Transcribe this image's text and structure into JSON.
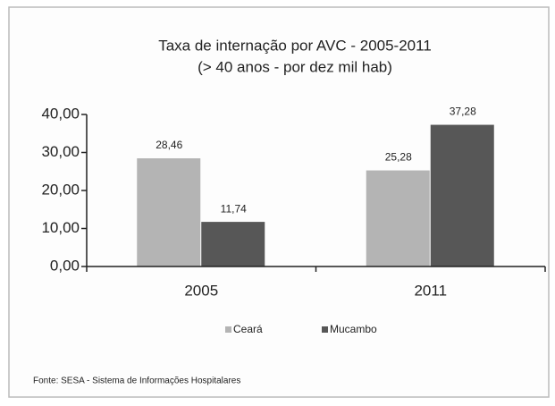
{
  "chart_data": {
    "type": "bar",
    "title": "Taxa de internação por AVC - 2005-2011",
    "subtitle": "(> 40 anos - por dez mil hab)",
    "categories": [
      "2005",
      "2011"
    ],
    "series": [
      {
        "name": "Ceará",
        "color": "#b4b4b4",
        "values": [
          28.46,
          25.28
        ],
        "value_labels": [
          "28,46",
          "25,28"
        ]
      },
      {
        "name": "Mucambo",
        "color": "#575757",
        "values": [
          11.74,
          37.28
        ],
        "value_labels": [
          "11,74",
          "37,28"
        ]
      }
    ],
    "ylim": [
      0,
      40
    ],
    "yticks": [
      {
        "value": 0,
        "label": "0,00"
      },
      {
        "value": 10,
        "label": "10,00"
      },
      {
        "value": 20,
        "label": "20,00"
      },
      {
        "value": 30,
        "label": "30,00"
      },
      {
        "value": 40,
        "label": "40,00"
      }
    ],
    "grid": false,
    "legend": "bottom",
    "source": "Fonte: SESA - Sistema de Informações Hospitalares"
  }
}
